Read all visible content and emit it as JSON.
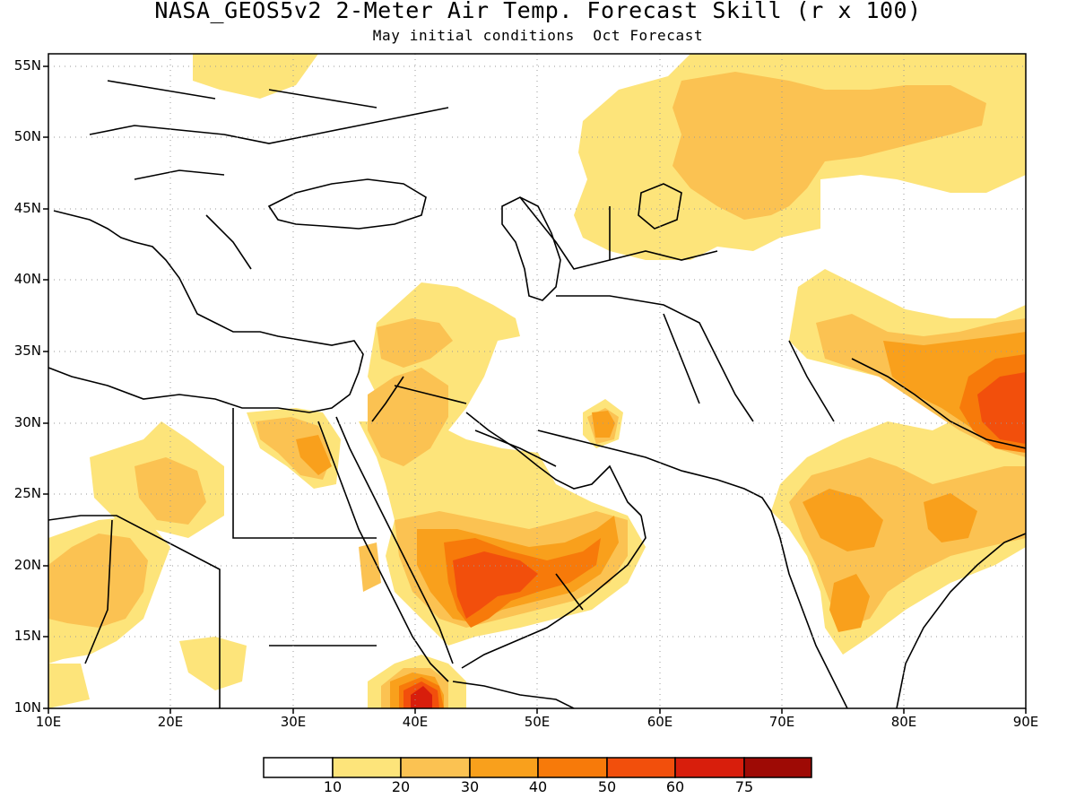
{
  "title": "NASA_GEOS5v2 2-Meter Air Temp. Forecast Skill (r x 100)",
  "subtitle": "May initial conditions  Oct Forecast",
  "lat_labels": [
    "55N",
    "50N",
    "45N",
    "40N",
    "35N",
    "30N",
    "25N",
    "20N",
    "15N",
    "10N"
  ],
  "lon_labels": [
    "10E",
    "20E",
    "30E",
    "40E",
    "50E",
    "60E",
    "70E",
    "80E",
    "90E"
  ],
  "colorbar": {
    "labels": [
      "10",
      "20",
      "30",
      "40",
      "50",
      "60",
      "75"
    ],
    "colors": [
      "#ffffff",
      "#fde47a",
      "#fbc252",
      "#f9a01c",
      "#f77a0a",
      "#f24f0c",
      "#d81e0c",
      "#9e0a05"
    ]
  },
  "map": {
    "extent": {
      "lon": [
        10,
        90
      ],
      "lat": [
        10,
        56
      ]
    },
    "gridlines": "dotted",
    "skill_regions": [
      {
        "level": 10,
        "color": "#fde47a",
        "areas": [
          "Central Asia / Kazakhstan belt 50-90E, 42-56N",
          "Caucasus / Syria / Iraq 35-46E, 27-40N",
          "Arabian Peninsula 36-59E, 14-28N",
          "Western Sahara / Libya 10-25E, 10-28N",
          "Indian subcontinent 70-90E, 12-38N",
          "Eastern Europe 20-35E, 50-56N",
          "Southern Iran 55-57E, 28-31N"
        ]
      },
      {
        "level": 20,
        "color": "#fbc252",
        "areas": [
          "Kazakhstan 63-88E, 44-55N",
          "Niger / Chad 10-18E, 15-23N",
          "Sudan / Chad 17-24E, 24-28N",
          "Arabian Peninsula 40-55E, 15-25N",
          "India / Himalaya 74-90E, 16-36N",
          "Iraq / Jordan 36-45E, 26-36N"
        ]
      },
      {
        "level": 30,
        "color": "#f9a01c",
        "areas": [
          "Arabian Peninsula 44-55E, 15-22N",
          "Himalaya / Nepal 80-90E, 25-35N",
          "Central India 75-85E, 18-26N",
          "Egypt Red Sea coast 33-37E, 24-29N",
          "Ethiopia / Eritrea 38-43E, 10-13N"
        ]
      },
      {
        "level": 40,
        "color": "#f77a0a",
        "areas": [
          "Yemen / Saudi south 45-52E, 14-21N",
          "Nepal / Tibet 84-90E, 27-33N",
          "Ethiopia 38-42E, 10-12N"
        ]
      },
      {
        "level": 50,
        "color": "#f24f0c",
        "areas": [
          "Yemen 46-50E, 16-20N",
          "Eastern Himalaya 86-90E, 28-31N",
          "Ethiopia 39-41E, 10-12N"
        ]
      },
      {
        "level": 60,
        "color": "#d81e0c",
        "areas": [
          "Ethiopia 40-41E, 10-11N"
        ]
      }
    ]
  }
}
